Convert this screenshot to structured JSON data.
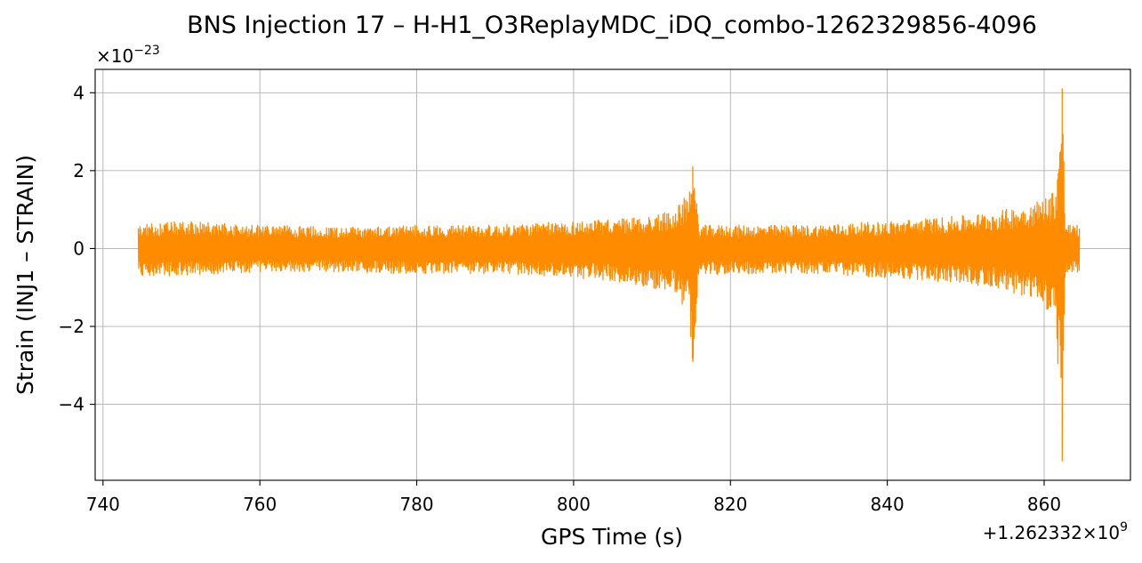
{
  "chart_data": {
    "type": "line",
    "title": "BNS Injection 17 – H-H1_O3ReplayMDC_iDQ_combo-1262329856-4096",
    "xlabel": "GPS Time (s)",
    "ylabel": "Strain (INJ1 – STRAIN)",
    "x_offset_label": "+1.262332×10^9",
    "y_scale_label": "×10^−23",
    "xlim": [
      739,
      871
    ],
    "ylim": [
      -5.95,
      4.6
    ],
    "xticks": [
      740,
      760,
      780,
      800,
      820,
      840,
      860
    ],
    "xtick_labels": [
      "740",
      "760",
      "780",
      "800",
      "820",
      "840",
      "860"
    ],
    "yticks": [
      -4,
      -2,
      0,
      2,
      4
    ],
    "ytick_labels": [
      "−4",
      "−2",
      "0",
      "2",
      "4"
    ],
    "grid": true,
    "series": [
      {
        "color": "#ff8c00",
        "envelope": {
          "x": [
            744.5,
            750,
            760,
            770,
            780,
            790,
            800,
            805,
            810,
            813,
            814.5,
            815.2,
            816,
            820,
            830,
            840,
            850,
            855,
            858,
            860,
            861.5,
            862.3,
            862.7,
            863.5,
            864.5
          ],
          "upper": [
            0.6,
            0.7,
            0.6,
            0.55,
            0.6,
            0.6,
            0.7,
            0.75,
            0.85,
            1.0,
            1.4,
            2.1,
            0.6,
            0.6,
            0.6,
            0.7,
            0.85,
            1.0,
            1.15,
            1.3,
            1.6,
            4.1,
            0.7,
            0.6,
            0.6
          ],
          "lower": [
            -0.7,
            -0.7,
            -0.6,
            -0.6,
            -0.65,
            -0.65,
            -0.75,
            -0.85,
            -1.0,
            -1.2,
            -1.6,
            -2.9,
            -0.7,
            -0.65,
            -0.65,
            -0.75,
            -0.9,
            -1.05,
            -1.3,
            -1.5,
            -1.9,
            -5.45,
            -0.75,
            -0.65,
            -0.65
          ]
        }
      }
    ]
  }
}
